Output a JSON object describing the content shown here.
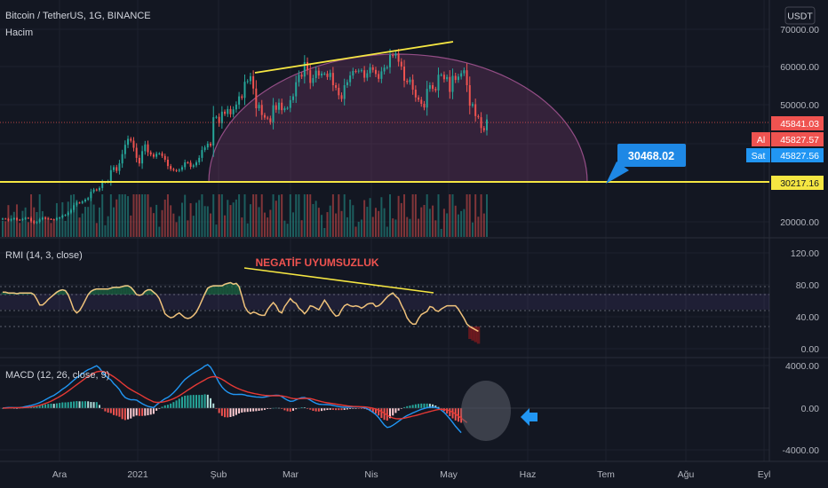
{
  "header": {
    "symbol_line": "Bitcoin / TetherUS, 1G, BINANCE",
    "volume_label": "Hacim",
    "currency_button": "USDT"
  },
  "colors": {
    "background": "#131722",
    "grid": "#1e222d",
    "up": "#26a69a",
    "down": "#ef5350",
    "trendline": "#f5e642",
    "dome": "#7b3b6e",
    "rmi_line": "#f0c27b",
    "rmi_overbought": "#1e7a4a",
    "macd_line": "#2196f3",
    "signal_line": "#e53935",
    "callout": "#1e88e5"
  },
  "price_pane": {
    "price_ticks": [
      "70000.00",
      "60000.00",
      "50000.00",
      "20000.00"
    ],
    "tags": {
      "last": "45841.03",
      "buy_label": "Al",
      "buy": "45827.57",
      "sell_label": "Sat",
      "sell": "45827.56",
      "support": "30217.16"
    },
    "support_level": 30217.16,
    "target_label": "30468.02"
  },
  "rmi_pane": {
    "label": "RMI (14, 3, close)",
    "annotation": "NEGATİF UYUMSUZLUK",
    "ticks": [
      "120.00",
      "80.00",
      "40.00",
      "0.00"
    ],
    "levels": [
      80,
      70,
      50,
      30
    ]
  },
  "macd_pane": {
    "label": "MACD (12, 26, close, 9)",
    "ticks": [
      "4000.00",
      "0.00",
      "-4000.00"
    ]
  },
  "time_axis": [
    "Ara",
    "2021",
    "Şub",
    "Mar",
    "Nis",
    "May",
    "Haz",
    "Tem",
    "Ağu",
    "Eyl"
  ],
  "chart_data": [
    {
      "type": "line",
      "name": "BTCUSDT daily closes (approx.)",
      "x_unit": "day index",
      "series": [
        {
          "values": [
            19200,
            19100,
            18700,
            19000,
            19300,
            18900,
            18800,
            19100,
            19400,
            19300,
            18500,
            18000,
            18300,
            19000,
            19400,
            19200,
            19100,
            19000,
            18900,
            19300,
            19500,
            20000,
            20200,
            20800,
            21500,
            22800,
            23500,
            23400,
            23800,
            24300,
            24700,
            26400,
            27000,
            26800,
            27400,
            28900,
            29000,
            29300,
            32200,
            33000,
            32000,
            34000,
            36500,
            39000,
            40600,
            40100,
            38200,
            35500,
            34000,
            37300,
            39100,
            37000,
            36400,
            35800,
            36600,
            36700,
            36000,
            35000,
            33300,
            32500,
            32200,
            32000,
            32300,
            33000,
            34300,
            34200,
            33100,
            33500,
            34300,
            35500,
            37600,
            38300,
            39300,
            38800,
            46400,
            46500,
            44800,
            47900,
            47300,
            48600,
            47200,
            48500,
            49800,
            52000,
            51600,
            55900,
            56100,
            57400,
            54100,
            48800,
            49700,
            47000,
            46300,
            46100,
            45100,
            49600,
            48400,
            50300,
            48300,
            48800,
            48900,
            51000,
            52000,
            55800,
            57800,
            57300,
            61200,
            59000,
            55600,
            56900,
            58900,
            57600,
            58100,
            58100,
            57200,
            58300,
            55000,
            54300,
            52300,
            51300,
            55000,
            55800,
            57600,
            58800,
            58700,
            58900,
            59000,
            57000,
            58200,
            59800,
            59100,
            58000,
            56700,
            58700,
            59700,
            59800,
            63100,
            62900,
            63500,
            61300,
            60000,
            56200,
            55800,
            56500,
            53800,
            51700,
            51100,
            50000,
            49000,
            54000,
            55000,
            54000,
            53600,
            57800,
            57800,
            56600,
            57200,
            53200,
            57500,
            56400,
            57300,
            58200,
            59000,
            55000,
            49500,
            49900,
            46700,
            46400,
            43500,
            42900,
            45800
          ]
        }
      ],
      "ylim": [
        17000,
        72000
      ]
    },
    {
      "type": "line",
      "name": "RMI (14, 3, close)",
      "series": [
        {
          "name": "RMI",
          "values": [
            73,
            73,
            72,
            72,
            72,
            71,
            72,
            72,
            72,
            72,
            72,
            70,
            64,
            57,
            57,
            60,
            64,
            67,
            70,
            73,
            75,
            76,
            75,
            70,
            61,
            51,
            47,
            50,
            56,
            63,
            70,
            74,
            76,
            77,
            77,
            77,
            77,
            77,
            78,
            79,
            79,
            79,
            80,
            81,
            81,
            79,
            75,
            70,
            69,
            70,
            74,
            76,
            76,
            73,
            70,
            65,
            56,
            46,
            43,
            41,
            42,
            45,
            47,
            44,
            41,
            40,
            41,
            44,
            48,
            55,
            63,
            71,
            78,
            80,
            81,
            81,
            81,
            81,
            83,
            84,
            85,
            83,
            84,
            80,
            68,
            55,
            49,
            46,
            48,
            47,
            45,
            44,
            44,
            51,
            56,
            60,
            56,
            49,
            47,
            55,
            60,
            65,
            61,
            59,
            53,
            50,
            46,
            50,
            56,
            55,
            53,
            51,
            57,
            63,
            58,
            52,
            47,
            43,
            44,
            51,
            56,
            58,
            56,
            55,
            56,
            55,
            53,
            55,
            58,
            59,
            59,
            55,
            56,
            59,
            63,
            67,
            70,
            72,
            68,
            65,
            57,
            50,
            41,
            36,
            33,
            33,
            40,
            45,
            47,
            49,
            55,
            54,
            50,
            49,
            52,
            54,
            56,
            56,
            56,
            56,
            52,
            46,
            40,
            33,
            30,
            28,
            26,
            24
          ]
        }
      ],
      "ylim": [
        -10,
        130
      ]
    },
    {
      "type": "line",
      "name": "MACD (12, 26, close, 9)",
      "series": [
        {
          "name": "MACD",
          "values": [
            0,
            30,
            60,
            60,
            50,
            40,
            60,
            90,
            150,
            200,
            260,
            330,
            420,
            520,
            640,
            790,
            940,
            1080,
            1200,
            1380,
            1570,
            1780,
            1950,
            2160,
            2400,
            2630,
            2860,
            3040,
            3240,
            3450,
            3620,
            3720,
            3860,
            3980,
            3760,
            3400,
            3080,
            2840,
            2650,
            2300,
            2050,
            1750,
            1300,
            1000,
            870,
            780,
            800,
            760,
            580,
            420,
            280,
            170,
            110,
            50,
            300,
            520,
            700,
            880,
            1010,
            1210,
            1460,
            1740,
            2060,
            2400,
            2690,
            2900,
            3100,
            3280,
            3450,
            3600,
            3760,
            3960,
            4080,
            3850,
            3400,
            2900,
            2380,
            1980,
            1700,
            1500,
            1370,
            1290,
            1280,
            1300,
            1290,
            1240,
            1170,
            1130,
            1090,
            1050,
            1030,
            1020,
            1040,
            1100,
            1150,
            1190,
            1210,
            1200,
            1080,
            900,
            750,
            640,
            660,
            780,
            900,
            980,
            990,
            900,
            760,
            590,
            460,
            370,
            350,
            340,
            330,
            310,
            260,
            200,
            150,
            110,
            90,
            90,
            100,
            120,
            130,
            120,
            90,
            40,
            -60,
            -220,
            -400,
            -600,
            -880,
            -1240,
            -1580,
            -1820,
            -1760,
            -1610,
            -1430,
            -1230,
            -1040,
            -850,
            -700,
            -580,
            -450,
            -330,
            -220,
            -110,
            -30,
            40,
            90,
            100,
            70,
            -20,
            -180,
            -400,
            -680,
            -1000,
            -1340,
            -1700,
            -2000,
            -2300
          ]
        },
        {
          "name": "Signal",
          "values": [
            0,
            10,
            20,
            30,
            35,
            35,
            40,
            50,
            60,
            80,
            120,
            160,
            210,
            270,
            350,
            440,
            540,
            660,
            790,
            930,
            1080,
            1240,
            1410,
            1600,
            1800,
            2000,
            2200,
            2400,
            2600,
            2800,
            2980,
            3140,
            3290,
            3410,
            3460,
            3450,
            3380,
            3260,
            3120,
            2950,
            2760,
            2560,
            2330,
            2120,
            1920,
            1750,
            1590,
            1450,
            1310,
            1150,
            990,
            840,
            720,
            590,
            540,
            540,
            570,
            620,
            690,
            780,
            890,
            1020,
            1170,
            1340,
            1520,
            1700,
            1870,
            2040,
            2210,
            2360,
            2510,
            2660,
            2820,
            2920,
            2960,
            2930,
            2840,
            2710,
            2550,
            2370,
            2200,
            2050,
            1920,
            1800,
            1700,
            1610,
            1520,
            1450,
            1390,
            1330,
            1280,
            1230,
            1200,
            1180,
            1170,
            1170,
            1170,
            1170,
            1150,
            1100,
            1040,
            960,
            900,
            880,
            880,
            900,
            920,
            920,
            900,
            840,
            760,
            680,
            610,
            550,
            500,
            460,
            420,
            380,
            330,
            290,
            250,
            210,
            180,
            160,
            150,
            140,
            130,
            120,
            90,
            50,
            -10,
            -90,
            -190,
            -320,
            -480,
            -650,
            -820,
            -920,
            -980,
            -1000,
            -980,
            -940,
            -880,
            -820,
            -750,
            -690,
            -620,
            -540,
            -460,
            -390,
            -320,
            -250,
            -180,
            -130,
            -110,
            -120,
            -170,
            -250,
            -380,
            -540,
            -730,
            -930,
            -1140,
            -1360
          ]
        }
      ],
      "ylim": [
        -4500,
        4500
      ]
    }
  ]
}
